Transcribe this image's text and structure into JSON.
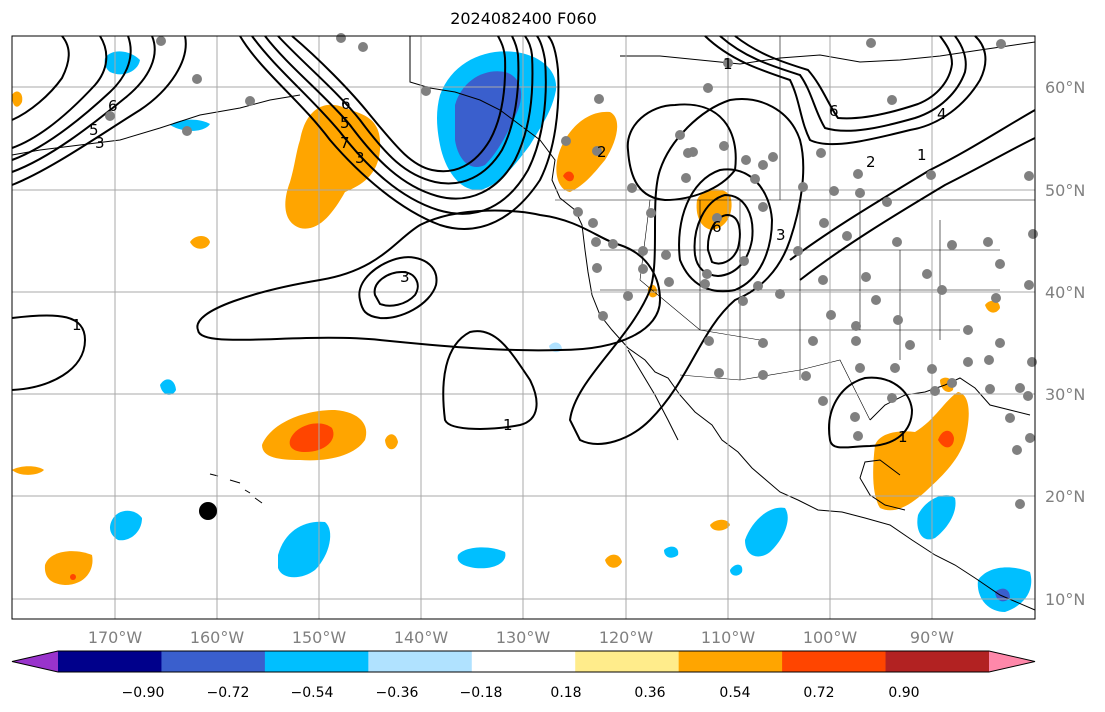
{
  "title": "2024082400 F060",
  "map": {
    "lon_labels": [
      "170°W",
      "160°W",
      "150°W",
      "140°W",
      "130°W",
      "120°W",
      "110°W",
      "100°W",
      "90°W"
    ],
    "lat_labels": [
      "60°N",
      "50°N",
      "40°N",
      "30°N",
      "20°N",
      "10°N"
    ],
    "contour_labels": [
      "6",
      "5",
      "3",
      "6",
      "5",
      "7",
      "3",
      "3",
      "1",
      "1",
      "1",
      "6",
      "2",
      "1",
      "4",
      "2",
      "3",
      "6",
      "1"
    ]
  },
  "colorbar": {
    "tick_labels": [
      "−0.90",
      "−0.72",
      "−0.54",
      "−0.36",
      "−0.18",
      "0.18",
      "0.36",
      "0.54",
      "0.72",
      "0.90"
    ],
    "colors": [
      "#9933cc",
      "#00008b",
      "#3a5fcd",
      "#00bfff",
      "#b0e2ff",
      "#ffffff",
      "#ffec8b",
      "#ffa500",
      "#ff4500",
      "#b22222",
      "#ff88aa"
    ]
  }
}
